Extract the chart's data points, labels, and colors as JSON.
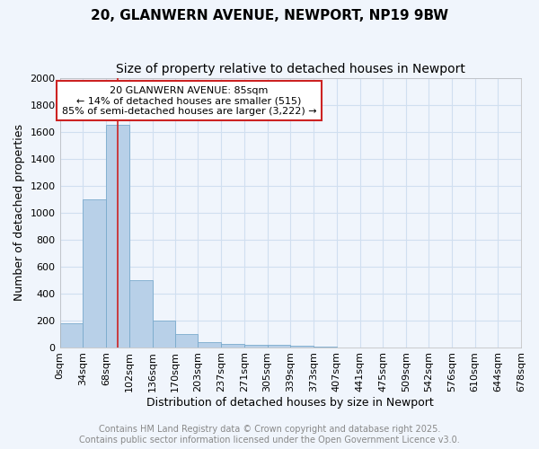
{
  "title": "20, GLANWERN AVENUE, NEWPORT, NP19 9BW",
  "subtitle": "Size of property relative to detached houses in Newport",
  "xlabel": "Distribution of detached houses by size in Newport",
  "ylabel": "Number of detached properties",
  "bin_edges": [
    0,
    34,
    68,
    102,
    136,
    170,
    203,
    237,
    271,
    305,
    339,
    373,
    407,
    441,
    475,
    509,
    542,
    576,
    610,
    644,
    678
  ],
  "bar_heights": [
    175,
    1100,
    1650,
    500,
    200,
    100,
    35,
    25,
    15,
    15,
    10,
    5,
    0,
    0,
    0,
    0,
    0,
    0,
    0,
    0
  ],
  "bar_color": "#b8d0e8",
  "bar_edge_color": "#7aaacc",
  "grid_color": "#d0dff0",
  "bg_color": "#f0f5fc",
  "plot_bg_color": "#f0f5fc",
  "property_size": 85,
  "red_line_color": "#cc2222",
  "annotation_text": "20 GLANWERN AVENUE: 85sqm\n← 14% of detached houses are smaller (515)\n85% of semi-detached houses are larger (3,222) →",
  "annotation_box_color": "#ffffff",
  "annotation_box_edge": "#cc2222",
  "ylim": [
    0,
    2000
  ],
  "yticks": [
    0,
    200,
    400,
    600,
    800,
    1000,
    1200,
    1400,
    1600,
    1800,
    2000
  ],
  "tick_labels": [
    "0sqm",
    "34sqm",
    "68sqm",
    "102sqm",
    "136sqm",
    "170sqm",
    "203sqm",
    "237sqm",
    "271sqm",
    "305sqm",
    "339sqm",
    "373sqm",
    "407sqm",
    "441sqm",
    "475sqm",
    "509sqm",
    "542sqm",
    "576sqm",
    "610sqm",
    "644sqm",
    "678sqm"
  ],
  "footer_line1": "Contains HM Land Registry data © Crown copyright and database right 2025.",
  "footer_line2": "Contains public sector information licensed under the Open Government Licence v3.0.",
  "footer_color": "#888888",
  "title_fontsize": 11,
  "subtitle_fontsize": 10,
  "axis_label_fontsize": 9,
  "tick_fontsize": 8,
  "annotation_fontsize": 8,
  "footer_fontsize": 7
}
